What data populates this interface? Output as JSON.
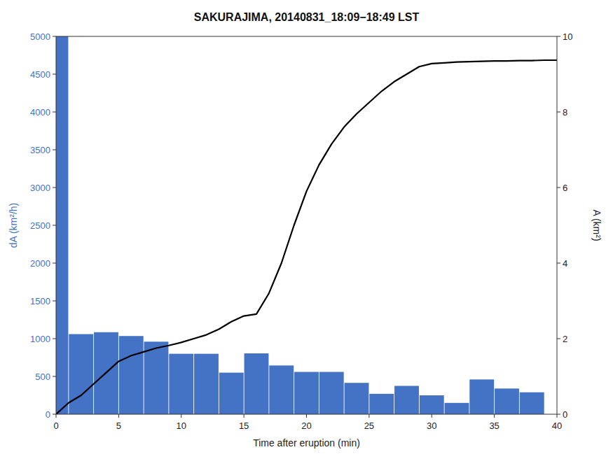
{
  "chart_data": {
    "type": "bar",
    "title": "SAKURAJIMA, 20140831_18:09−18:49 LST",
    "xlabel": "Time after eruption (min)",
    "ylabel": "dA (km²/h)",
    "y2label": "A (km²)",
    "xlim": [
      0,
      40
    ],
    "ylim": [
      0,
      5000
    ],
    "y2lim": [
      0,
      10
    ],
    "xticks": [
      0,
      5,
      10,
      15,
      20,
      25,
      30,
      35,
      40
    ],
    "yticks": [
      0,
      500,
      1000,
      1500,
      2000,
      2500,
      3000,
      3500,
      4000,
      4500,
      5000
    ],
    "y2ticks": [
      0,
      2,
      4,
      6,
      8,
      10
    ],
    "series": [
      {
        "type": "bar",
        "color": "#4472C4",
        "x": [
          0,
          2,
          4,
          6,
          8,
          10,
          12,
          14,
          16,
          18,
          20,
          22,
          24,
          26,
          28,
          30,
          32,
          34,
          36,
          38
        ],
        "values": [
          5000,
          1060,
          1085,
          1035,
          960,
          800,
          800,
          550,
          805,
          645,
          560,
          560,
          415,
          270,
          375,
          250,
          150,
          460,
          340,
          290
        ]
      },
      {
        "type": "line",
        "color": "#000000",
        "axis": "y2",
        "x": [
          0,
          1,
          2,
          3,
          4,
          5,
          6,
          7,
          8,
          9,
          10,
          11,
          12,
          13,
          14,
          15,
          16,
          17,
          18,
          19,
          20,
          21,
          22,
          23,
          24,
          25,
          26,
          27,
          28,
          29,
          30,
          31,
          32,
          33,
          34,
          35,
          36,
          37,
          38,
          39,
          40
        ],
        "values": [
          0.0,
          0.3,
          0.5,
          0.8,
          1.1,
          1.4,
          1.55,
          1.65,
          1.75,
          1.82,
          1.9,
          2.0,
          2.1,
          2.25,
          2.45,
          2.6,
          2.65,
          3.2,
          4.0,
          5.0,
          5.9,
          6.6,
          7.15,
          7.6,
          7.95,
          8.25,
          8.55,
          8.8,
          9.0,
          9.2,
          9.28,
          9.3,
          9.32,
          9.33,
          9.34,
          9.35,
          9.35,
          9.36,
          9.36,
          9.37,
          9.37
        ]
      }
    ]
  }
}
